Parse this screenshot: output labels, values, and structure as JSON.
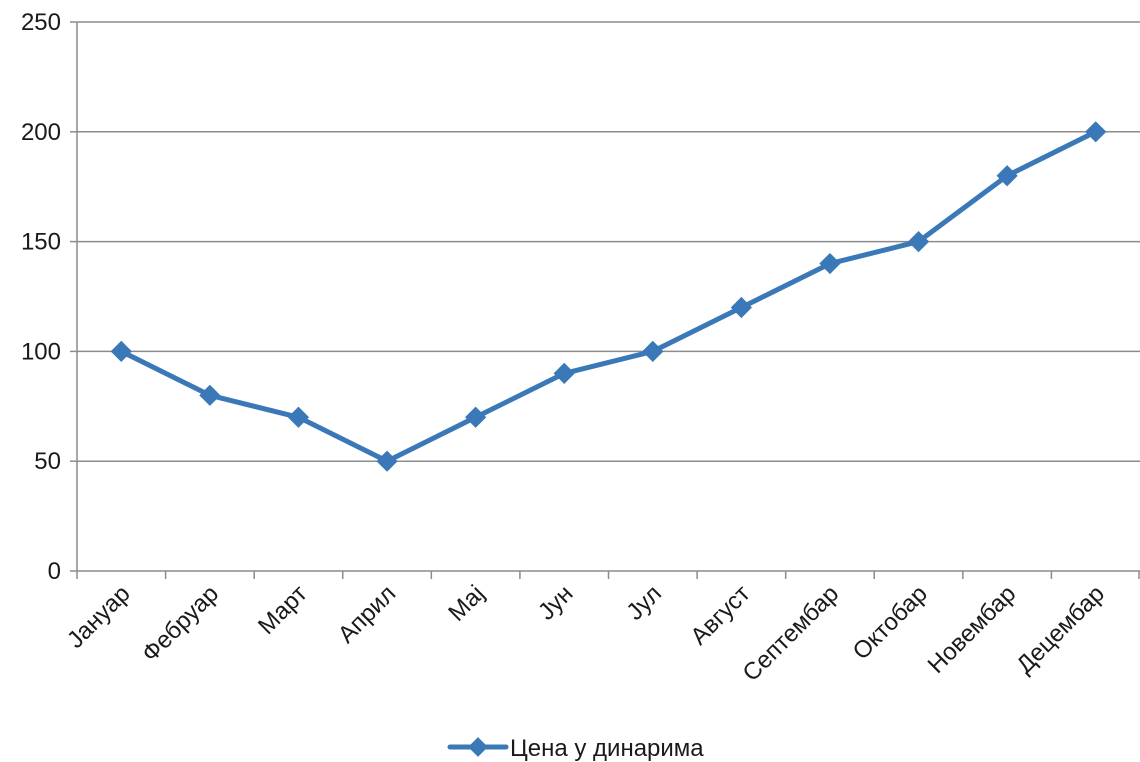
{
  "chart_data": {
    "type": "line",
    "title": "",
    "xlabel": "",
    "ylabel": "",
    "categories": [
      "Јануар",
      "Фебруар",
      "Март",
      "Април",
      "Мај",
      "Јун",
      "Јул",
      "Август",
      "Септембар",
      "Октобар",
      "Новембар",
      "Децембар"
    ],
    "series": [
      {
        "name": "Цена у динарима",
        "values": [
          100,
          80,
          70,
          50,
          70,
          90,
          100,
          120,
          140,
          150,
          180,
          200
        ],
        "color": "#3a78b8",
        "marker": "diamond"
      }
    ],
    "ylim": [
      0,
      250
    ],
    "yticks": [
      0,
      50,
      100,
      150,
      200,
      250
    ],
    "grid": true,
    "legend_position": "bottom",
    "colors": {
      "grid": "#8c8c8c",
      "axis": "#8c8c8c",
      "text": "#1a1a1a"
    }
  }
}
